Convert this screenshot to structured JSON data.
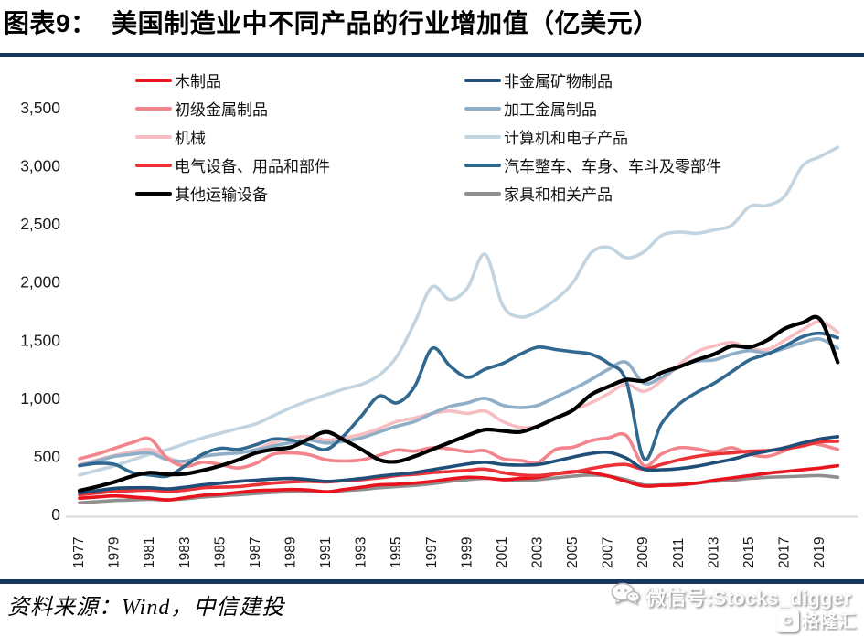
{
  "title": "图表9：  美国制造业中不同产品的行业增加值（亿美元）",
  "source": {
    "text": "资料来源：Wind，中信建投"
  },
  "watermark": {
    "wechat_label": "微信号:Stocks_digger",
    "logo_letter": "G",
    "logo_text": "格隆汇"
  },
  "colors": {
    "divider": "#17365d",
    "axis_line": "#d9d9d9"
  },
  "chart_data": {
    "type": "line",
    "title": "美国制造业中不同产品的行业增加值（亿美元）",
    "xlabel": "",
    "ylabel": "",
    "grid": false,
    "legend_position": "top",
    "ylim": [
      0,
      3500
    ],
    "y_ticks": [
      0,
      500,
      1000,
      1500,
      2000,
      2500,
      3000,
      3500
    ],
    "y_tick_labels": [
      "0",
      "500",
      "1,000",
      "1,500",
      "2,000",
      "2,500",
      "3,000",
      "3,500"
    ],
    "x_tick_labels": [
      "1977",
      "1979",
      "1981",
      "1983",
      "1985",
      "1987",
      "1989",
      "1991",
      "1993",
      "1995",
      "1997",
      "1999",
      "2001",
      "2003",
      "2005",
      "2007",
      "2009",
      "2011",
      "2013",
      "2015",
      "2017",
      "2019"
    ],
    "x": [
      1977,
      1978,
      1979,
      1980,
      1981,
      1982,
      1983,
      1984,
      1985,
      1986,
      1987,
      1988,
      1989,
      1990,
      1991,
      1992,
      1993,
      1994,
      1995,
      1996,
      1997,
      1998,
      1999,
      2000,
      2001,
      2002,
      2003,
      2004,
      2005,
      2006,
      2007,
      2008,
      2009,
      2010,
      2011,
      2012,
      2013,
      2014,
      2015,
      2016,
      2017,
      2018,
      2019,
      2020
    ],
    "legend_columns": {
      "left": [
        "木制品",
        "初级金属制品",
        "机械",
        "电气设备、用品和部件",
        "其他运输设备"
      ],
      "right": [
        "非金属矿物制品",
        "加工金属制品",
        "计算机和电子产品",
        "汽车整车、车身、车斗及零部件",
        "家具和相关产品"
      ]
    },
    "series": [
      {
        "name": "计算机和电子产品",
        "color": "#c3d4e1",
        "width": 3.6,
        "values": [
          340,
          380,
          420,
          470,
          520,
          560,
          610,
          660,
          700,
          740,
          780,
          850,
          920,
          980,
          1030,
          1080,
          1120,
          1200,
          1360,
          1650,
          1960,
          1850,
          1950,
          2240,
          1800,
          1700,
          1750,
          1850,
          2000,
          2250,
          2300,
          2210,
          2260,
          2400,
          2430,
          2420,
          2450,
          2490,
          2650,
          2660,
          2740,
          3000,
          3080,
          3160
        ]
      },
      {
        "name": "机械",
        "color": "#f6bec2",
        "width": 3.6,
        "values": [
          430,
          470,
          510,
          540,
          560,
          490,
          450,
          500,
          520,
          530,
          560,
          620,
          660,
          670,
          640,
          660,
          690,
          740,
          800,
          830,
          870,
          890,
          870,
          890,
          800,
          750,
          760,
          830,
          900,
          960,
          1040,
          1120,
          1060,
          1150,
          1290,
          1400,
          1450,
          1480,
          1430,
          1420,
          1500,
          1590,
          1660,
          1570
        ]
      },
      {
        "name": "加工金属制品",
        "color": "#8faec8",
        "width": 3.6,
        "values": [
          420,
          460,
          500,
          520,
          530,
          470,
          460,
          500,
          520,
          530,
          555,
          590,
          620,
          640,
          615,
          630,
          660,
          710,
          760,
          800,
          870,
          930,
          960,
          1000,
          940,
          920,
          940,
          1010,
          1080,
          1160,
          1250,
          1310,
          1130,
          1180,
          1270,
          1320,
          1330,
          1380,
          1410,
          1390,
          1430,
          1480,
          1510,
          1430
        ]
      },
      {
        "name": "初级金属制品",
        "color": "#f2848b",
        "width": 3.6,
        "values": [
          480,
          520,
          570,
          620,
          650,
          480,
          415,
          450,
          430,
          400,
          440,
          520,
          530,
          515,
          470,
          460,
          470,
          510,
          555,
          545,
          575,
          565,
          540,
          550,
          480,
          465,
          450,
          560,
          580,
          635,
          660,
          680,
          420,
          520,
          575,
          565,
          540,
          575,
          520,
          500,
          550,
          615,
          600,
          560
        ]
      },
      {
        "name": "家具和相关产品",
        "color": "#8f8f8f",
        "width": 3.6,
        "values": [
          100,
          110,
          120,
          125,
          130,
          125,
          135,
          150,
          160,
          170,
          180,
          190,
          195,
          200,
          195,
          205,
          215,
          230,
          240,
          250,
          265,
          285,
          300,
          310,
          300,
          295,
          300,
          315,
          330,
          340,
          330,
          300,
          255,
          255,
          260,
          270,
          285,
          295,
          310,
          320,
          325,
          330,
          335,
          320
        ]
      },
      {
        "name": "木制品",
        "color": "#e8131c",
        "width": 3.6,
        "values": [
          140,
          150,
          160,
          150,
          140,
          125,
          145,
          165,
          175,
          190,
          205,
          210,
          215,
          210,
          195,
          215,
          235,
          255,
          260,
          270,
          285,
          305,
          320,
          315,
          300,
          310,
          320,
          350,
          370,
          360,
          330,
          285,
          245,
          250,
          255,
          270,
          295,
          315,
          335,
          355,
          370,
          385,
          400,
          420
        ]
      },
      {
        "name": "电气设备、用品和部件",
        "color": "#ed3237",
        "width": 3.6,
        "values": [
          170,
          185,
          200,
          205,
          210,
          200,
          210,
          230,
          235,
          240,
          255,
          270,
          280,
          285,
          280,
          290,
          300,
          315,
          335,
          345,
          360,
          370,
          380,
          390,
          360,
          340,
          335,
          350,
          365,
          395,
          420,
          430,
          390,
          430,
          470,
          500,
          520,
          530,
          545,
          550,
          565,
          590,
          625,
          630
        ]
      },
      {
        "name": "非金属矿物制品",
        "color": "#1f4e79",
        "width": 3.6,
        "values": [
          185,
          205,
          225,
          230,
          230,
          220,
          235,
          255,
          270,
          285,
          295,
          305,
          310,
          300,
          285,
          295,
          310,
          330,
          345,
          360,
          385,
          410,
          435,
          450,
          430,
          425,
          430,
          460,
          495,
          525,
          535,
          485,
          390,
          385,
          395,
          415,
          445,
          475,
          515,
          545,
          575,
          615,
          650,
          670
        ]
      },
      {
        "name": "汽车整车、车身、车斗及零部件",
        "color": "#31688f",
        "width": 3.6,
        "values": [
          420,
          440,
          430,
          360,
          340,
          330,
          420,
          520,
          570,
          560,
          600,
          650,
          640,
          600,
          560,
          680,
          850,
          1020,
          960,
          1100,
          1430,
          1280,
          1180,
          1250,
          1300,
          1380,
          1440,
          1420,
          1400,
          1380,
          1300,
          1150,
          480,
          780,
          950,
          1050,
          1130,
          1230,
          1330,
          1380,
          1450,
          1530,
          1560,
          1520
        ]
      },
      {
        "name": "其他运输设备",
        "color": "#000000",
        "width": 4.2,
        "values": [
          205,
          240,
          280,
          330,
          360,
          345,
          350,
          380,
          420,
          470,
          530,
          560,
          580,
          650,
          710,
          640,
          560,
          470,
          455,
          500,
          560,
          620,
          680,
          730,
          720,
          710,
          760,
          830,
          900,
          1030,
          1100,
          1160,
          1150,
          1220,
          1270,
          1330,
          1380,
          1450,
          1440,
          1500,
          1600,
          1650,
          1680,
          1310
        ]
      }
    ]
  }
}
